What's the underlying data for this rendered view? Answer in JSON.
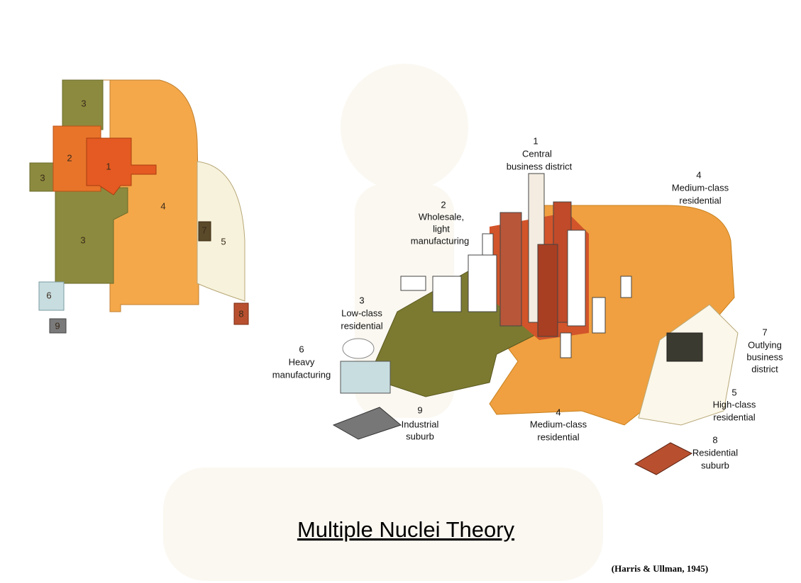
{
  "map_labels": [
    "3",
    "2",
    "1",
    "3",
    "4",
    "3",
    "7",
    "5",
    "6",
    "9",
    "8"
  ],
  "illustration_labels": [
    {
      "number": "1",
      "lines": [
        "Central",
        "business district"
      ]
    },
    {
      "number": "2",
      "lines": [
        "Wholesale,",
        "light",
        "manufacturing"
      ]
    },
    {
      "number": "3",
      "lines": [
        "Low-class",
        "residential"
      ]
    },
    {
      "number": "4",
      "lines": [
        "Medium-class",
        "residential"
      ]
    },
    {
      "number": "6",
      "lines": [
        "Heavy",
        "manufacturing"
      ]
    },
    {
      "number": "7",
      "lines": [
        "Outlying",
        "business",
        "district"
      ]
    },
    {
      "number": "5",
      "lines": [
        "High-class",
        "residential"
      ]
    },
    {
      "number": "9",
      "lines": [
        "Industrial",
        "suburb"
      ]
    },
    {
      "number": "4",
      "lines": [
        "Medium-class",
        "residential"
      ]
    },
    {
      "number": "8",
      "lines": [
        "Residential",
        "suburb"
      ]
    }
  ],
  "title": "Multiple Nuclei Theory",
  "citation": "(Harris & Ullman, 1945)"
}
